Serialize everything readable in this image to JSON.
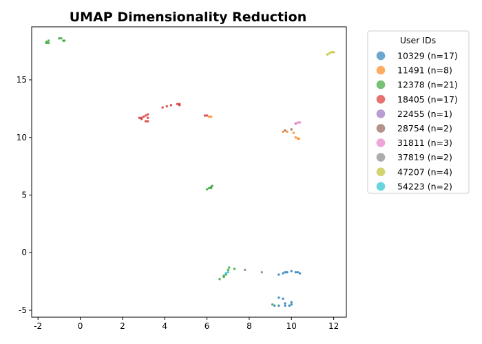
{
  "chart_data": {
    "type": "scatter",
    "title": "UMAP Dimensionality Reduction",
    "xlabel": "",
    "ylabel": "",
    "xlim": [
      -2.3,
      12.6
    ],
    "ylim": [
      -5.6,
      19.6
    ],
    "xticks": [
      -2,
      0,
      2,
      4,
      6,
      8,
      10,
      12
    ],
    "yticks": [
      -5,
      0,
      5,
      10,
      15
    ],
    "grid": false,
    "legend": {
      "title": "User IDs",
      "placement": "outside-right"
    },
    "series": [
      {
        "name": "10329 (n=17)",
        "color": "#1f77b4",
        "points": [
          [
            9.4,
            -1.9
          ],
          [
            9.6,
            -1.8
          ],
          [
            9.7,
            -1.7
          ],
          [
            9.8,
            -1.7
          ],
          [
            10.0,
            -1.6
          ],
          [
            10.2,
            -1.7
          ],
          [
            10.3,
            -1.7
          ],
          [
            10.4,
            -1.8
          ],
          [
            9.4,
            -3.9
          ],
          [
            9.6,
            -4.0
          ],
          [
            9.7,
            -4.4
          ],
          [
            9.7,
            -4.6
          ],
          [
            9.9,
            -4.6
          ],
          [
            10.0,
            -4.5
          ],
          [
            10.0,
            -4.3
          ],
          [
            9.2,
            -4.6
          ],
          [
            9.4,
            -4.6
          ]
        ]
      },
      {
        "name": "11491 (n=8)",
        "color": "#ff7f0e",
        "points": [
          [
            6.1,
            11.8
          ],
          [
            6.2,
            11.8
          ],
          [
            9.6,
            10.5
          ],
          [
            9.8,
            10.5
          ],
          [
            10.1,
            10.4
          ],
          [
            10.2,
            10.0
          ],
          [
            10.3,
            9.9
          ],
          [
            10.35,
            9.9
          ]
        ]
      },
      {
        "name": "12378 (n=21)",
        "color": "#2ca02c",
        "points": [
          [
            -1.6,
            18.3
          ],
          [
            -1.5,
            18.4
          ],
          [
            -1.6,
            18.2
          ],
          [
            -1.5,
            18.2
          ],
          [
            -1.0,
            18.6
          ],
          [
            -0.9,
            18.6
          ],
          [
            -0.8,
            18.4
          ],
          [
            -0.75,
            18.4
          ],
          [
            6.0,
            5.5
          ],
          [
            6.1,
            5.6
          ],
          [
            6.2,
            5.7
          ],
          [
            6.25,
            5.8
          ],
          [
            6.6,
            -2.3
          ],
          [
            6.8,
            -2.1
          ],
          [
            6.9,
            -1.9
          ],
          [
            7.0,
            -1.5
          ],
          [
            7.05,
            -1.3
          ],
          [
            7.3,
            -1.4
          ],
          [
            9.1,
            -4.5
          ],
          [
            6.8,
            -2.0
          ],
          [
            6.2,
            5.6
          ]
        ]
      },
      {
        "name": "18405 (n=17)",
        "color": "#d62728",
        "points": [
          [
            2.8,
            11.7
          ],
          [
            2.9,
            11.7
          ],
          [
            3.0,
            11.8
          ],
          [
            3.1,
            11.9
          ],
          [
            3.2,
            12.0
          ],
          [
            3.2,
            11.7
          ],
          [
            3.1,
            11.4
          ],
          [
            3.2,
            11.4
          ],
          [
            3.9,
            12.6
          ],
          [
            4.1,
            12.7
          ],
          [
            4.3,
            12.8
          ],
          [
            4.6,
            12.9
          ],
          [
            4.7,
            12.8
          ],
          [
            4.7,
            12.9
          ],
          [
            5.9,
            11.9
          ],
          [
            6.0,
            11.9
          ],
          [
            2.9,
            11.6
          ]
        ]
      },
      {
        "name": "22455 (n=1)",
        "color": "#9467bd",
        "points": [
          [
            10.2,
            11.2
          ]
        ]
      },
      {
        "name": "28754 (n=2)",
        "color": "#8c564b",
        "points": [
          [
            9.7,
            10.6
          ],
          [
            10.0,
            10.7
          ]
        ]
      },
      {
        "name": "31811 (n=3)",
        "color": "#e377c2",
        "points": [
          [
            10.2,
            11.2
          ],
          [
            10.3,
            11.3
          ],
          [
            10.4,
            11.3
          ]
        ]
      },
      {
        "name": "37819 (n=2)",
        "color": "#7f7f7f",
        "points": [
          [
            7.8,
            -1.5
          ],
          [
            8.6,
            -1.7
          ]
        ]
      },
      {
        "name": "47207 (n=4)",
        "color": "#bcbd22",
        "points": [
          [
            11.7,
            17.2
          ],
          [
            11.8,
            17.3
          ],
          [
            11.9,
            17.4
          ],
          [
            12.0,
            17.4
          ]
        ]
      },
      {
        "name": "54223 (n=2)",
        "color": "#17becf",
        "points": [
          [
            6.9,
            -1.8
          ],
          [
            7.0,
            -1.7
          ]
        ]
      }
    ]
  }
}
